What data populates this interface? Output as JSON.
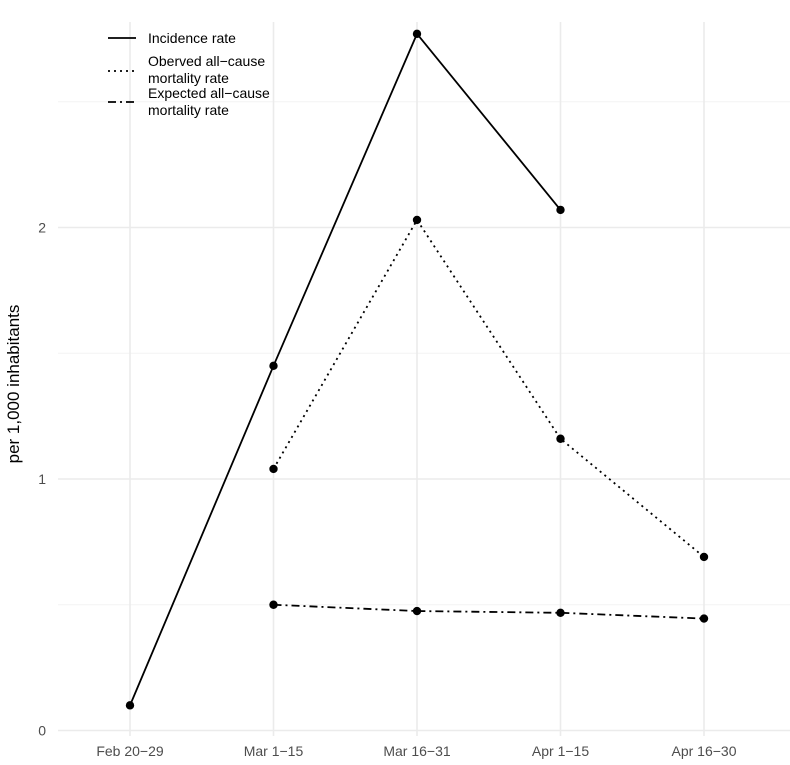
{
  "chart_data": {
    "type": "line",
    "categories": [
      "Feb 20−29",
      "Mar 1−15",
      "Mar 16−31",
      "Apr 1−15",
      "Apr 16−30"
    ],
    "ylabel": "per 1,000 inhabitants",
    "xlabel": "",
    "ylim": [
      0,
      2.8
    ],
    "y_ticks": [
      "0",
      "1",
      "2"
    ],
    "grid": true,
    "legend_position": "top-left",
    "series": [
      {
        "name": "Incidence rate",
        "dash": "solid",
        "values": [
          0.1,
          1.45,
          2.77,
          2.07,
          null
        ]
      },
      {
        "name": "Oberved all−cause mortality rate",
        "name_lines": [
          "Oberved all−cause",
          "mortality rate"
        ],
        "dash": "dotted",
        "values": [
          null,
          1.04,
          2.03,
          1.16,
          0.69
        ]
      },
      {
        "name": "Expected all−cause mortality rate",
        "name_lines": [
          "Expected all−cause",
          "mortality rate"
        ],
        "dash": "dashdot",
        "values": [
          null,
          0.5,
          0.475,
          0.468,
          0.445
        ]
      }
    ],
    "colors": {
      "line": "#000000",
      "grid_major": "#ebebeb",
      "grid_minor": "#f3f3f3",
      "tick_text": "#4d4d4d"
    }
  }
}
